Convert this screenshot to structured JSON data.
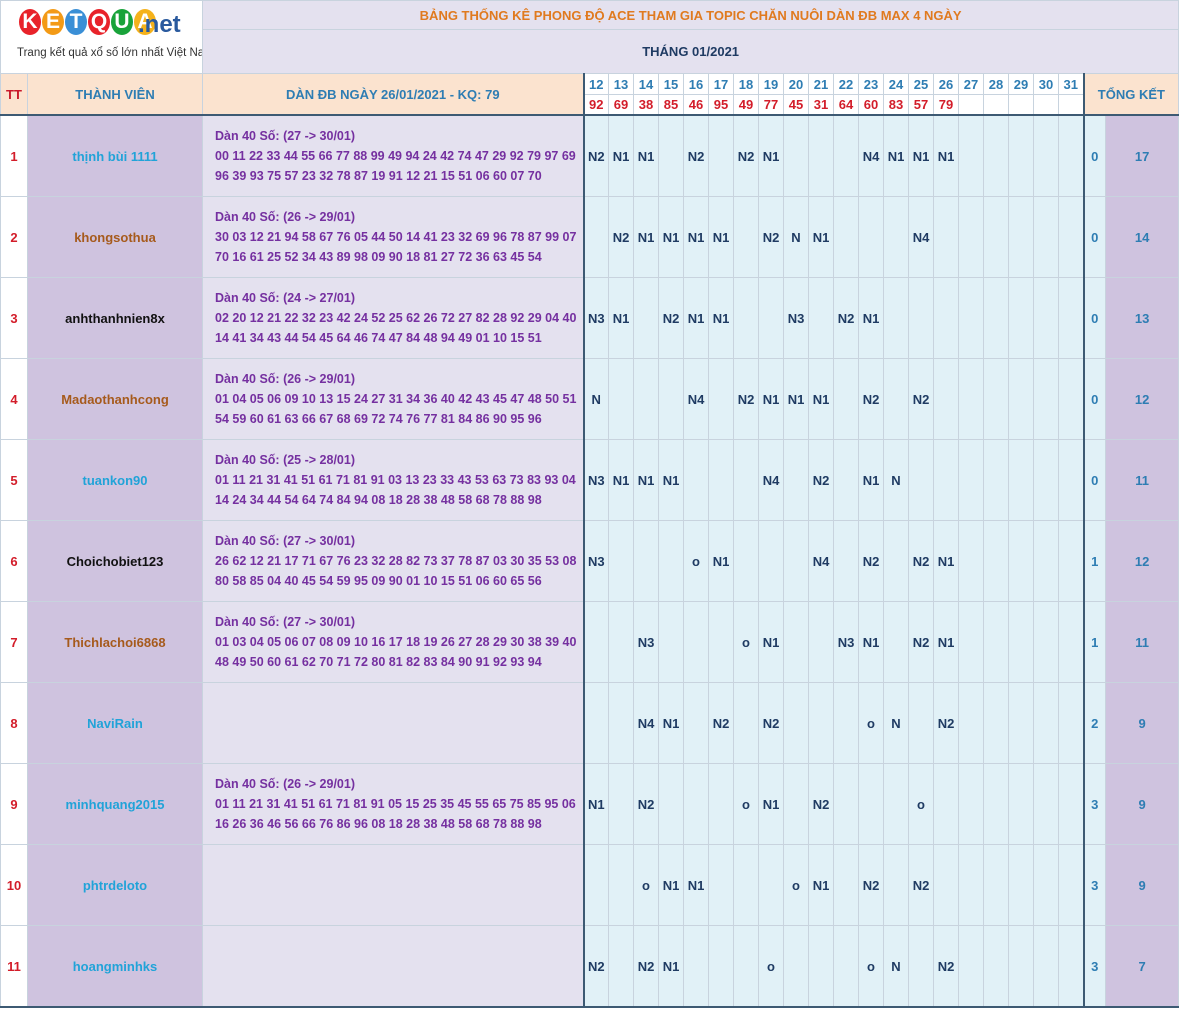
{
  "logo": {
    "letters": [
      "K",
      "E",
      "T",
      "Q",
      "U",
      "A"
    ],
    "colors": [
      "#e8232a",
      "#f39a16",
      "#3a8fd6",
      "#e8232a",
      "#19a33a",
      "#f5b21b"
    ],
    "suffix": ".net",
    "tagline": "Trang kết quả xổ số lớn nhất Việt Nam"
  },
  "header": {
    "title": "BẢNG THỐNG KÊ PHONG ĐỘ ACE THAM GIA TOPIC CHĂN NUÔI DÀN ĐB MAX 4 NGÀY",
    "month": "THÁNG 01/2021",
    "col_tt": "TT",
    "col_member": "THÀNH VIÊN",
    "col_dan": "DÀN ĐB NGÀY 26/01/2021 - KQ: 79",
    "col_total": "TỔNG KẾT"
  },
  "days": [
    "12",
    "13",
    "14",
    "15",
    "16",
    "17",
    "18",
    "19",
    "20",
    "21",
    "22",
    "23",
    "24",
    "25",
    "26",
    "27",
    "28",
    "29",
    "30",
    "31"
  ],
  "results": [
    "92",
    "69",
    "38",
    "85",
    "46",
    "95",
    "49",
    "77",
    "45",
    "31",
    "64",
    "60",
    "83",
    "57",
    "79",
    "",
    "",
    "",
    "",
    ""
  ],
  "rows": [
    {
      "tt": "1",
      "name": "thịnh bùi 1111",
      "name_color": "#21a3d8",
      "dan_title": "Dàn 40 Số: (27 -> 30/01)",
      "dan_nums": "00 11 22 33 44 55 66 77 88 99 49 94 24 42 74 47 29 92 79 97 69 96 39 93 75 57 23 32 78 87 19 91 12 21 15 51 06 60 07 70",
      "marks": [
        "N2",
        "N1",
        "N1",
        "",
        "N2",
        "",
        "N2",
        "N1",
        "",
        "",
        "",
        "N4",
        "N1",
        "N1",
        "N1",
        "",
        "",
        "",
        "",
        ""
      ],
      "s1": "0",
      "s2": "17"
    },
    {
      "tt": "2",
      "name": "khongsothua",
      "name_color": "#a65a1c",
      "dan_title": "Dàn 40 Số: (26 -> 29/01)",
      "dan_nums": "30 03 12 21 94 58 67 76 05 44 50 14 41 23 32 69 96 78 87 99 07 70 16 61 25 52 34 43 89 98 09 90 18 81 27 72 36 63 45 54",
      "marks": [
        "",
        "N2",
        "N1",
        "N1",
        "N1",
        "N1",
        "",
        "N2",
        "N",
        "N1",
        "",
        "",
        "",
        "N4",
        "",
        "",
        "",
        "",
        "",
        ""
      ],
      "s1": "0",
      "s2": "14"
    },
    {
      "tt": "3",
      "name": "anhthanhnien8x",
      "name_color": "#111111",
      "dan_title": "Dàn 40 Số: (24 -> 27/01)",
      "dan_nums": "02 20 12 21 22 32 23 42 24 52 25 62 26 72 27 82 28 92 29 04 40 14 41 34 43 44 54 45 64 46 74 47 84 48 94 49 01 10 15 51",
      "marks": [
        "N3",
        "N1",
        "",
        "N2",
        "N1",
        "N1",
        "",
        "",
        "N3",
        "",
        "N2",
        "N1",
        "",
        "",
        "",
        "",
        "",
        "",
        "",
        ""
      ],
      "s1": "0",
      "s2": "13"
    },
    {
      "tt": "4",
      "name": "Madaothanhcong",
      "name_color": "#a65a1c",
      "dan_title": "Dàn 40 Số: (26 -> 29/01)",
      "dan_nums": "01 04 05 06 09 10 13 15 24 27 31 34 36 40 42 43 45 47 48 50 51 54 59 60 61 63 66 67 68 69 72 74 76 77 81 84 86 90 95 96",
      "marks": [
        "N",
        "",
        "",
        "",
        "N4",
        "",
        "N2",
        "N1",
        "N1",
        "N1",
        "",
        "N2",
        "",
        "N2",
        "",
        "",
        "",
        "",
        "",
        ""
      ],
      "s1": "0",
      "s2": "12"
    },
    {
      "tt": "5",
      "name": "tuankon90",
      "name_color": "#21a3d8",
      "dan_title": "Dàn 40 Số: (25 -> 28/01)",
      "dan_nums": "01 11 21 31 41 51 61 71 81 91 03 13 23 33 43 53 63 73 83 93 04 14 24 34 44 54 64 74 84 94 08 18 28 38 48 58 68 78 88 98",
      "marks": [
        "N3",
        "N1",
        "N1",
        "N1",
        "",
        "",
        "",
        "N4",
        "",
        "N2",
        "",
        "N1",
        "N",
        "",
        "",
        "",
        "",
        "",
        "",
        ""
      ],
      "s1": "0",
      "s2": "11"
    },
    {
      "tt": "6",
      "name": "Choichobiet123",
      "name_color": "#111111",
      "dan_title": "Dàn 40 Số: (27 -> 30/01)",
      "dan_nums": "26 62 12 21 17 71 67 76 23 32 28 82 73 37 78 87 03 30 35 53 08 80 58 85 04 40 45 54 59 95 09 90 01 10 15 51 06 60 65 56",
      "marks": [
        "N3",
        "",
        "",
        "",
        "o",
        "N1",
        "",
        "",
        "",
        "N4",
        "",
        "N2",
        "",
        "N2",
        "N1",
        "",
        "",
        "",
        "",
        ""
      ],
      "s1": "1",
      "s2": "12"
    },
    {
      "tt": "7",
      "name": "Thichlachoi6868",
      "name_color": "#a65a1c",
      "dan_title": "Dàn 40 Số: (27 -> 30/01)",
      "dan_nums": "01 03 04 05 06 07 08 09 10 16 17 18 19 26 27 28 29 30 38 39 40 48 49 50 60 61 62 70 71 72 80 81 82 83 84 90 91 92 93 94",
      "marks": [
        "",
        "",
        "N3",
        "",
        "",
        "",
        "o",
        "N1",
        "",
        "",
        "N3",
        "N1",
        "",
        "N2",
        "N1",
        "",
        "",
        "",
        "",
        ""
      ],
      "s1": "1",
      "s2": "11"
    },
    {
      "tt": "8",
      "name": "NaviRain",
      "name_color": "#21a3d8",
      "dan_title": "",
      "dan_nums": "",
      "marks": [
        "",
        "",
        "N4",
        "N1",
        "",
        "N2",
        "",
        "N2",
        "",
        "",
        "",
        "o",
        "N",
        "",
        "N2",
        "",
        "",
        "",
        "",
        ""
      ],
      "s1": "2",
      "s2": "9"
    },
    {
      "tt": "9",
      "name": "minhquang2015",
      "name_color": "#21a3d8",
      "dan_title": "Dàn 40 Số: (26 -> 29/01)",
      "dan_nums": "01 11 21 31 41 51 61 71 81 91 05 15 25 35 45 55 65 75 85 95 06 16 26 36 46 56 66 76 86 96 08 18 28 38 48 58 68 78 88 98",
      "marks": [
        "N1",
        "",
        "N2",
        "",
        "",
        "",
        "o",
        "N1",
        "",
        "N2",
        "",
        "",
        "",
        "o",
        "",
        "",
        "",
        "",
        "",
        ""
      ],
      "s1": "3",
      "s2": "9"
    },
    {
      "tt": "10",
      "name": "phtrdeloto",
      "name_color": "#21a3d8",
      "dan_title": "",
      "dan_nums": "",
      "marks": [
        "",
        "",
        "o",
        "N1",
        "N1",
        "",
        "",
        "",
        "o",
        "N1",
        "",
        "N2",
        "",
        "N2",
        "",
        "",
        "",
        "",
        "",
        ""
      ],
      "s1": "3",
      "s2": "9"
    },
    {
      "tt": "11",
      "name": "hoangminhks",
      "name_color": "#21a3d8",
      "dan_title": "",
      "dan_nums": "",
      "marks": [
        "N2",
        "",
        "N2",
        "N1",
        "",
        "",
        "",
        "o",
        "",
        "",
        "",
        "o",
        "N",
        "",
        "N2",
        "",
        "",
        "",
        "",
        ""
      ],
      "s1": "3",
      "s2": "7"
    }
  ]
}
